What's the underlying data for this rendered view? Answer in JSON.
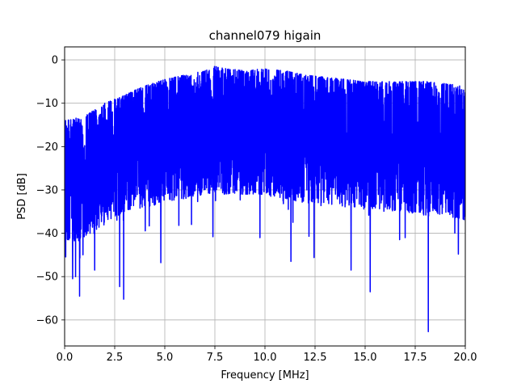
{
  "chart_data": {
    "type": "line",
    "title": "channel079 higain",
    "xlabel": "Frequency [MHz]",
    "ylabel": "PSD [dB]",
    "xlim": [
      0,
      20
    ],
    "ylim": [
      -66,
      3
    ],
    "xticks": [
      0.0,
      2.5,
      5.0,
      7.5,
      10.0,
      12.5,
      15.0,
      17.5,
      20.0
    ],
    "xtick_labels": [
      "0.0",
      "2.5",
      "5.0",
      "7.5",
      "10.0",
      "12.5",
      "15.0",
      "17.5",
      "20.0"
    ],
    "yticks": [
      0,
      -10,
      -20,
      -30,
      -40,
      -50,
      -60
    ],
    "ytick_labels": [
      "0",
      "−10",
      "−20",
      "−30",
      "−40",
      "−50",
      "−60"
    ],
    "grid": true,
    "series": [
      {
        "color": "#0000ff",
        "envelope": {
          "x": [
            0,
            1,
            2,
            3,
            4,
            5,
            6,
            7,
            7.5,
            8,
            9,
            10,
            11,
            12,
            13,
            14,
            15,
            16,
            17,
            18,
            19,
            20
          ],
          "upper": [
            -14,
            -13,
            -10,
            -8,
            -6,
            -4.5,
            -3.5,
            -2.5,
            -1.5,
            -2,
            -2.5,
            -2,
            -2.5,
            -3.5,
            -4,
            -4.5,
            -5,
            -5,
            -5,
            -5,
            -5.5,
            -6
          ],
          "lower_typical": [
            -42,
            -41,
            -38,
            -35,
            -34,
            -33,
            -32,
            -31,
            -31,
            -31,
            -31,
            -31,
            -32,
            -33,
            -33,
            -34,
            -34,
            -35,
            -35,
            -36,
            -36,
            -37
          ]
        },
        "deep_dips": [
          {
            "x": 0.4,
            "y": -50.5
          },
          {
            "x": 0.55,
            "y": -50
          },
          {
            "x": 0.75,
            "y": -54.5
          },
          {
            "x": 1.5,
            "y": -48.5
          },
          {
            "x": 2.75,
            "y": -52.3
          },
          {
            "x": 2.95,
            "y": -55.2
          },
          {
            "x": 4.8,
            "y": -46.8
          },
          {
            "x": 7.4,
            "y": -40.8
          },
          {
            "x": 9.75,
            "y": -41
          },
          {
            "x": 11.3,
            "y": -46.5
          },
          {
            "x": 12.45,
            "y": -45.6
          },
          {
            "x": 14.3,
            "y": -48.5
          },
          {
            "x": 15.25,
            "y": -53.5
          },
          {
            "x": 17.0,
            "y": -41
          },
          {
            "x": 18.15,
            "y": -62.7
          },
          {
            "x": 19.65,
            "y": -44.8
          }
        ]
      }
    ]
  }
}
